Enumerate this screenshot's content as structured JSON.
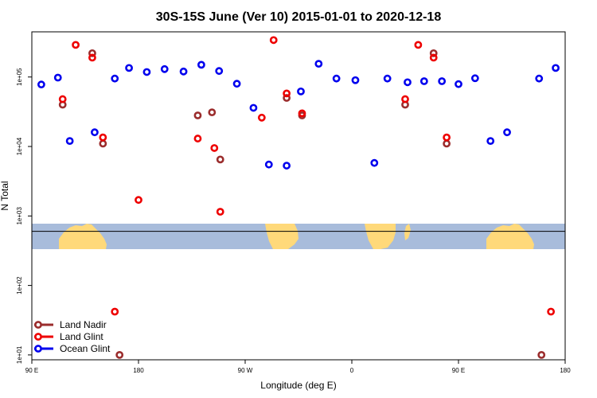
{
  "chart_data": {
    "type": "scatter",
    "title": "30S-15S June (Ver 10)   2015-01-01 to 2020-12-18",
    "xlabel": "Longitude (deg E)",
    "ylabel": "N Total",
    "x_ticks": [
      {
        "value": -90,
        "label": "90 E"
      },
      {
        "value": 0,
        "label": "180"
      },
      {
        "value": 90,
        "label": "90 W"
      },
      {
        "value": 180,
        "label": "0"
      },
      {
        "value": 270,
        "label": "90 E"
      },
      {
        "value": 360,
        "label": "180"
      }
    ],
    "y_ticks": [
      {
        "value": 10,
        "label": "1e+01"
      },
      {
        "value": 100,
        "label": "1e+02"
      },
      {
        "value": 1000,
        "label": "1e+03"
      },
      {
        "value": 10000,
        "label": "1e+04"
      },
      {
        "value": 100000,
        "label": "1e+05"
      }
    ],
    "xlim": [
      -90,
      360
    ],
    "ylim_log10": [
      0.93,
      5.65
    ],
    "y_scale": "log",
    "horizontal_line": 600,
    "legend_position": "bottom-left",
    "series": [
      {
        "name": "Land Nadir",
        "color": "#9b2d2d",
        "points": [
          [
            -64,
            40000
          ],
          [
            -39,
            220000
          ],
          [
            -30,
            11000
          ],
          [
            -16,
            10
          ],
          [
            50,
            28000
          ],
          [
            62,
            31000
          ],
          [
            69,
            6500
          ],
          [
            125,
            50000
          ],
          [
            138,
            28000
          ],
          [
            225,
            40000
          ],
          [
            249,
            220000
          ],
          [
            260,
            11000
          ],
          [
            340,
            10
          ]
        ]
      },
      {
        "name": "Land Glint",
        "color": "#ee0000",
        "points": [
          [
            -64,
            48000
          ],
          [
            -53,
            290000
          ],
          [
            -39,
            190000
          ],
          [
            -30,
            13500
          ],
          [
            -20,
            42
          ],
          [
            0,
            1700
          ],
          [
            50,
            13000
          ],
          [
            64,
            9500
          ],
          [
            69,
            1150
          ],
          [
            104,
            26000
          ],
          [
            114,
            340000
          ],
          [
            125,
            58000
          ],
          [
            138,
            30000
          ],
          [
            225,
            48000
          ],
          [
            236,
            290000
          ],
          [
            249,
            190000
          ],
          [
            260,
            13500
          ],
          [
            348,
            42
          ]
        ]
      },
      {
        "name": "Ocean Glint",
        "color": "#0000ee",
        "points": [
          [
            -82,
            78000
          ],
          [
            -68,
            98000
          ],
          [
            -58,
            12000
          ],
          [
            -37,
            16000
          ],
          [
            -20,
            95000
          ],
          [
            -8,
            135000
          ],
          [
            7,
            118000
          ],
          [
            22,
            130000
          ],
          [
            38,
            120000
          ],
          [
            53,
            150000
          ],
          [
            68,
            122000
          ],
          [
            83,
            80000
          ],
          [
            97,
            36000
          ],
          [
            110,
            5500
          ],
          [
            125,
            5300
          ],
          [
            137,
            62000
          ],
          [
            152,
            155000
          ],
          [
            167,
            95000
          ],
          [
            183,
            90000
          ],
          [
            199,
            5800
          ],
          [
            210,
            95000
          ],
          [
            227,
            84000
          ],
          [
            241,
            87000
          ],
          [
            256,
            87000
          ],
          [
            270,
            79000
          ],
          [
            284,
            96000
          ],
          [
            297,
            12000
          ],
          [
            311,
            16000
          ],
          [
            338,
            95000
          ],
          [
            352,
            135000
          ]
        ]
      }
    ]
  }
}
